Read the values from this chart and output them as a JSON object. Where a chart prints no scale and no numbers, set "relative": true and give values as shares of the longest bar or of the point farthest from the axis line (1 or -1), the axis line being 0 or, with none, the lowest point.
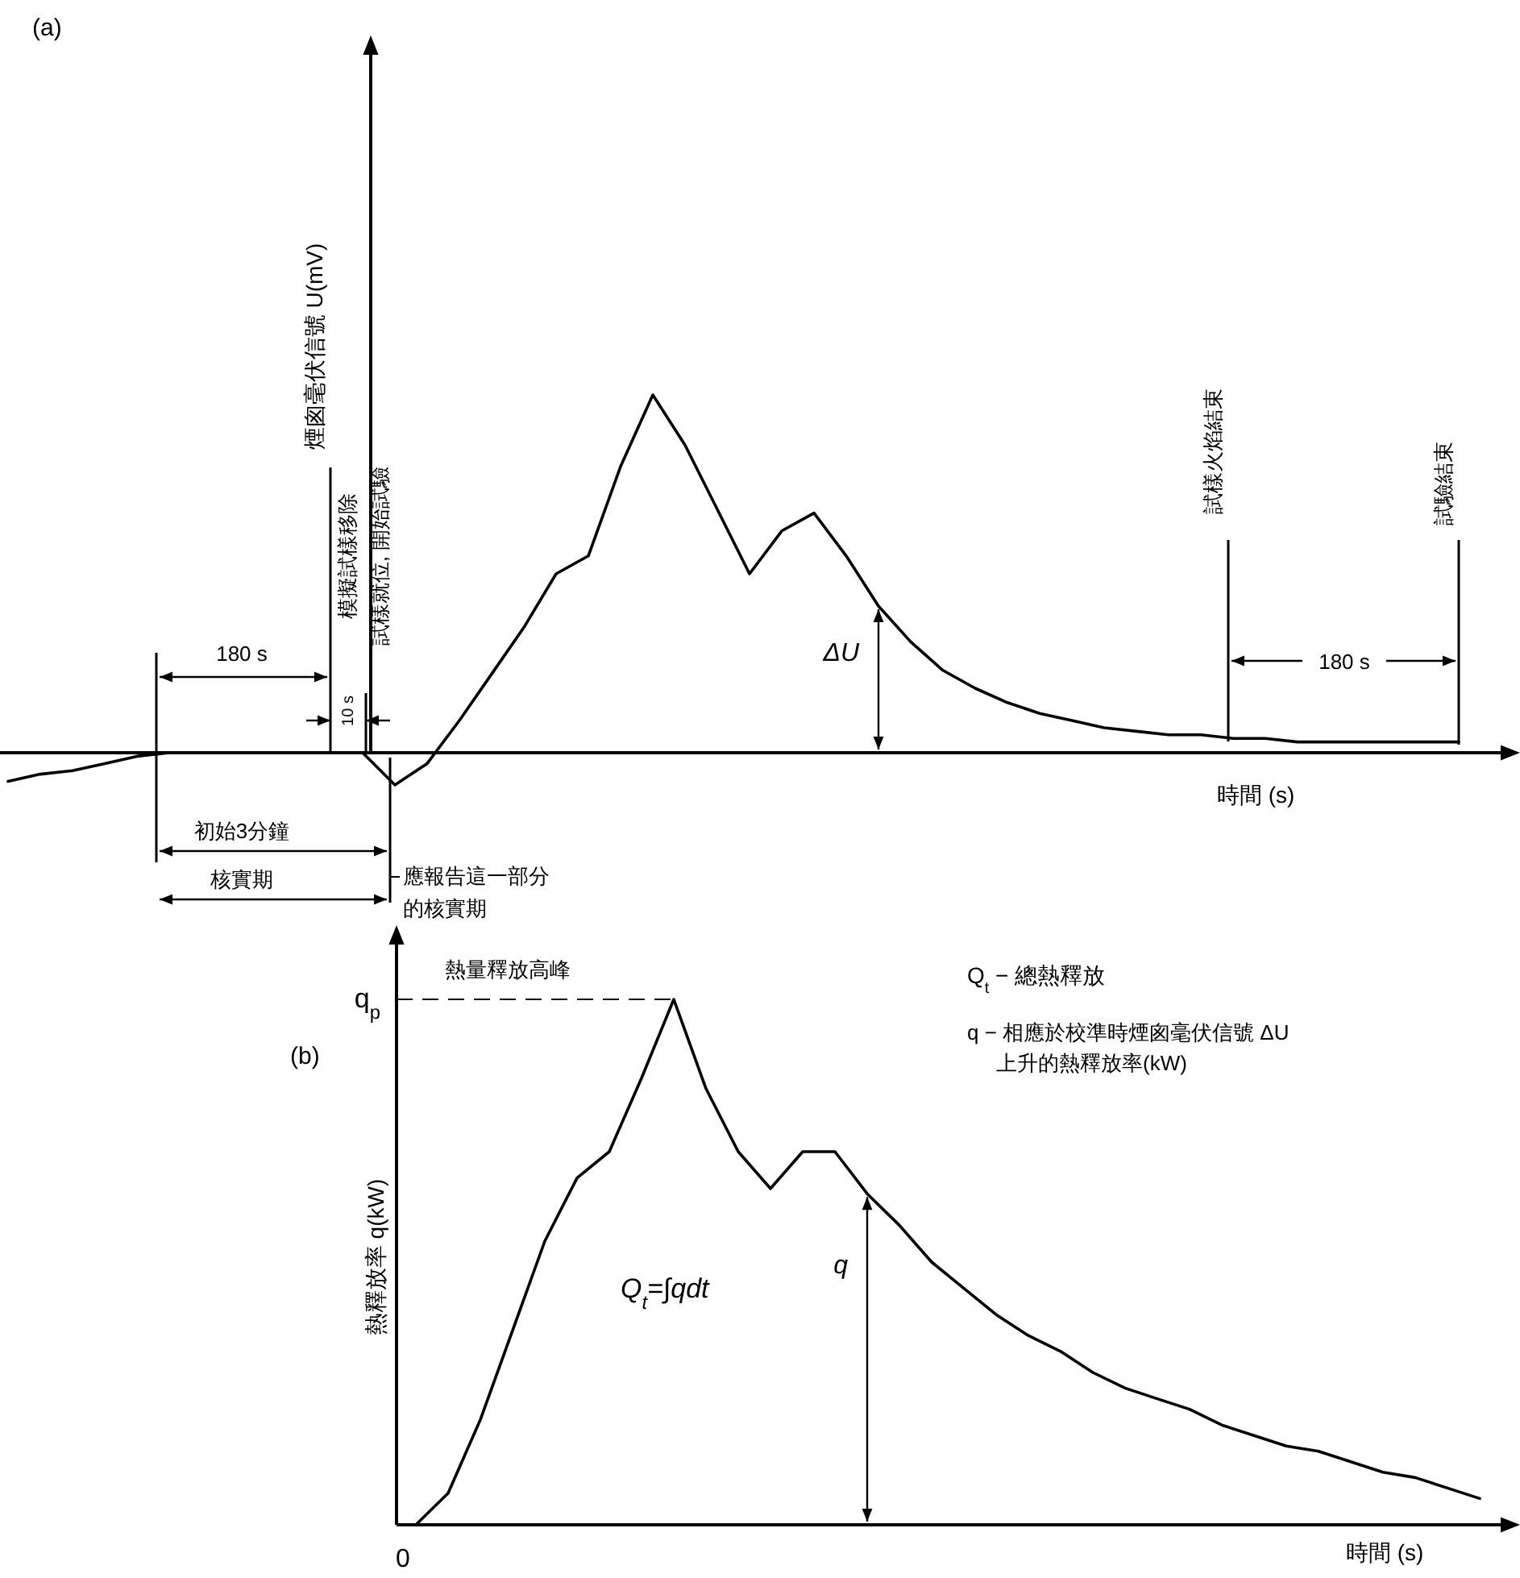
{
  "chart_data": [
    {
      "type": "line",
      "title": "(a)",
      "ylabel": "煙囪毫伏信號 U(mV)",
      "xlabel": "時間 (s)",
      "relative": true,
      "categories": [
        null,
        null,
        null,
        null,
        null,
        null,
        null,
        null,
        null,
        null,
        null,
        null,
        null,
        null,
        null,
        null,
        null,
        null,
        null,
        null,
        null,
        null,
        null,
        null,
        null,
        null,
        null,
        null,
        null,
        null,
        null,
        null,
        null,
        null,
        null,
        null,
        null,
        null,
        null,
        null,
        null,
        null,
        null,
        null,
        null,
        null
      ],
      "series": [
        {
          "color": "#000000",
          "values": [
            -0.08,
            -0.06,
            -0.05,
            -0.03,
            -0.01,
            0,
            0,
            0,
            0,
            0,
            0,
            0,
            -0.09,
            -0.03,
            0.09,
            0.22,
            0.35,
            0.5,
            0.55,
            0.8,
            1,
            0.86,
            0.68,
            0.5,
            0.62,
            0.67,
            0.55,
            0.41,
            0.31,
            0.23,
            0.18,
            0.14,
            0.11,
            0.09,
            0.07,
            0.06,
            0.05,
            0.05,
            0.04,
            0.04,
            0.03,
            0.03,
            0.03,
            0.03,
            0.03,
            0.03
          ]
        }
      ],
      "annotations": [
        "模擬試樣移除",
        "試樣就位, 開始試驗",
        "試樣火焰結束",
        "試驗結束",
        "180 s",
        "10 s",
        "180 s",
        "初始3分鐘",
        "核實期",
        "應報告這一部分的核實期",
        "ΔU"
      ]
    },
    {
      "type": "line",
      "title": "(b)",
      "ylabel": "熱釋放率 q(kW)",
      "xlabel": "時間 (s)",
      "relative": true,
      "categories": [
        null,
        null,
        null,
        null,
        null,
        null,
        null,
        null,
        null,
        null,
        null,
        null,
        null,
        null,
        null,
        null,
        null,
        null,
        null,
        null,
        null,
        null,
        null,
        null,
        null,
        null,
        null,
        null,
        null,
        null,
        null,
        null,
        null,
        null
      ],
      "series": [
        {
          "color": "#000000",
          "values": [
            0,
            0.06,
            0.2,
            0.37,
            0.54,
            0.66,
            0.71,
            0.85,
            1,
            0.83,
            0.71,
            0.64,
            0.71,
            0.71,
            0.63,
            0.57,
            0.5,
            0.45,
            0.4,
            0.36,
            0.33,
            0.29,
            0.26,
            0.24,
            0.22,
            0.19,
            0.17,
            0.15,
            0.14,
            0.12,
            0.1,
            0.09,
            0.07,
            0.05
          ]
        }
      ],
      "ref_lines": [
        {
          "axis": "y",
          "value": 1,
          "label": "熱量釋放高峰",
          "line_style": "dashed"
        }
      ],
      "annotations": [
        "q$_{p}$",
        "0",
        "Q$_{t}$ − 總熱釋放",
        "q − 相應於校準時煙囪毫伏信號 ΔU 上升的熱釋放率(kW)",
        "Q$_{t}$=∫qdt",
        "q"
      ]
    }
  ]
}
